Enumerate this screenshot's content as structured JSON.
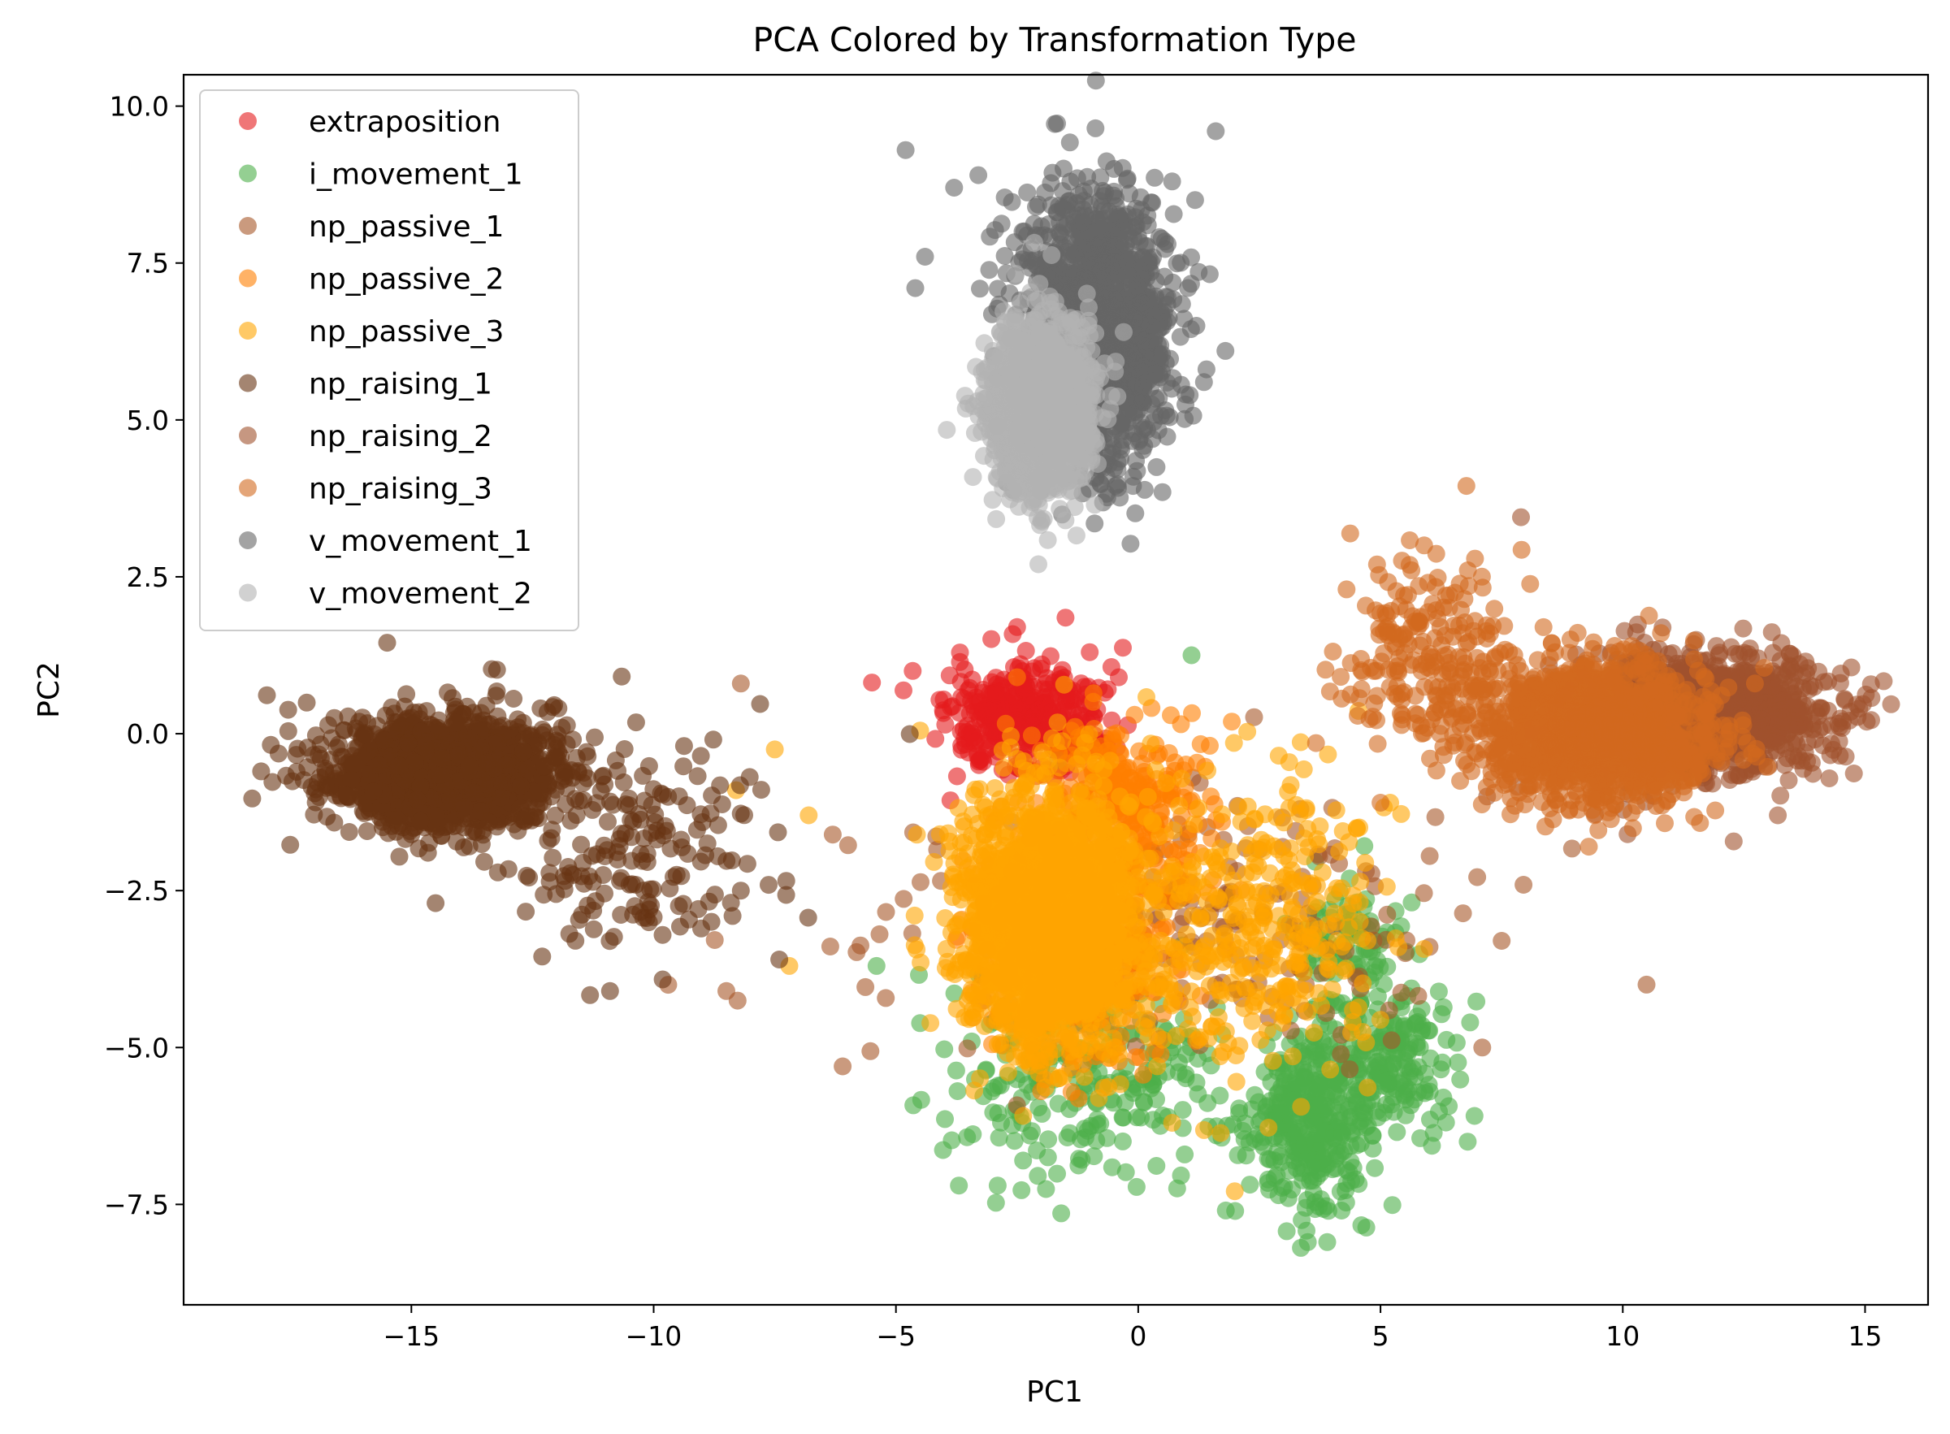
{
  "chart_data": {
    "type": "scatter",
    "title": "PCA Colored by Transformation Type",
    "xlabel": "PC1",
    "ylabel": "PC2",
    "xlim": [
      -19.7,
      16.3
    ],
    "ylim": [
      -9.1,
      10.5
    ],
    "xticks": [
      -15,
      -10,
      -5,
      0,
      5,
      10,
      15
    ],
    "xtick_labels": [
      "−15",
      "−10",
      "−5",
      "0",
      "5",
      "10",
      "15"
    ],
    "yticks": [
      -7.5,
      -5.0,
      -2.5,
      0.0,
      2.5,
      5.0,
      7.5,
      10.0
    ],
    "ytick_labels": [
      "−7.5",
      "−5.0",
      "−2.5",
      "0.0",
      "2.5",
      "5.0",
      "7.5",
      "10.0"
    ],
    "grid": false,
    "legend_position": "top-left",
    "marker_alpha": 0.6,
    "series": [
      {
        "name": "extraposition",
        "color": "#e41a1c",
        "n": 400,
        "clusters": [
          {
            "cx": -2.3,
            "cy": 0.2,
            "sx": 0.8,
            "sy": 0.42,
            "w": 1
          }
        ],
        "outliers": [
          [
            -2.5,
            1.7
          ],
          [
            -1.5,
            1.85
          ],
          [
            -0.4,
            0.9
          ],
          [
            -3.5,
            -0.3
          ],
          [
            -1.0,
            1.3
          ]
        ]
      },
      {
        "name": "i_movement_1",
        "color": "#4daf4a",
        "n": 900,
        "clusters": [
          {
            "cx": 3.5,
            "cy": -6.3,
            "sx": 0.65,
            "sy": 0.65,
            "w": 0.35
          },
          {
            "cx": 5.0,
            "cy": -5.2,
            "sx": 0.8,
            "sy": 0.55,
            "w": 0.25
          },
          {
            "cx": 4.5,
            "cy": -3.2,
            "sx": 0.6,
            "sy": 0.5,
            "w": 0.1
          },
          {
            "cx": -1.2,
            "cy": -5.3,
            "sx": 1.4,
            "sy": 0.9,
            "w": 0.3
          }
        ],
        "outliers": [
          [
            1.1,
            1.25
          ],
          [
            -3.7,
            -7.2
          ],
          [
            -2.9,
            -7.2
          ],
          [
            3.5,
            -8.1
          ],
          [
            3.9,
            -8.1
          ],
          [
            6.8,
            -6.5
          ],
          [
            -5.4,
            -3.7
          ]
        ]
      },
      {
        "name": "np_passive_1",
        "color": "#a65628",
        "n": 260,
        "clusters": [
          {
            "cx": 0.5,
            "cy": -3.0,
            "sx": 3.0,
            "sy": 1.1,
            "w": 1
          }
        ],
        "outliers": [
          [
            -6.1,
            -5.3
          ],
          [
            -8.2,
            0.8
          ],
          [
            7.1,
            -5.0
          ],
          [
            7.5,
            -3.3
          ],
          [
            -9.7,
            -4.0
          ],
          [
            -8.5,
            -4.1
          ]
        ]
      },
      {
        "name": "np_passive_2",
        "color": "#ff7f00",
        "n": 700,
        "clusters": [
          {
            "cx": -0.3,
            "cy": -1.0,
            "sx": 0.9,
            "sy": 0.65,
            "w": 0.4
          },
          {
            "cx": -1.2,
            "cy": -3.4,
            "sx": 1.0,
            "sy": 0.9,
            "w": 0.6
          }
        ],
        "outliers": [
          [
            -2.5,
            0.9
          ],
          [
            1.5,
            -1.0
          ]
        ]
      },
      {
        "name": "np_passive_3",
        "color": "#ffa500",
        "n": 2200,
        "clusters": [
          {
            "cx": -1.8,
            "cy": -3.0,
            "sx": 0.9,
            "sy": 1.0,
            "w": 0.85
          },
          {
            "cx": 2.5,
            "cy": -3.0,
            "sx": 1.3,
            "sy": 1.2,
            "w": 0.15
          }
        ],
        "outliers": [
          [
            -7.5,
            -0.25
          ],
          [
            -6.8,
            -1.3
          ],
          [
            -7.2,
            -3.7
          ],
          [
            -8.3,
            -0.9
          ],
          [
            -4.5,
            0.05
          ],
          [
            2.9,
            -0.35
          ],
          [
            0.7,
            -6.2
          ],
          [
            5.2,
            -1.1
          ]
        ]
      },
      {
        "name": "np_raising_1",
        "color": "#673312",
        "n": 1700,
        "clusters": [
          {
            "cx": -14.3,
            "cy": -0.6,
            "sx": 1.2,
            "sy": 0.45,
            "w": 0.9
          },
          {
            "cx": -10.5,
            "cy": -1.9,
            "sx": 1.5,
            "sy": 0.9,
            "w": 0.1
          }
        ],
        "outliers": [
          [
            -15.5,
            1.45
          ],
          [
            -18.1,
            -0.6
          ],
          [
            -12.3,
            -3.55
          ],
          [
            -10.9,
            -4.1
          ],
          [
            -14.5,
            -2.7
          ],
          [
            -8.2,
            -2.5
          ]
        ]
      },
      {
        "name": "np_raising_2",
        "color": "#a0522d",
        "n": 1300,
        "clusters": [
          {
            "cx": 11.5,
            "cy": 0.3,
            "sx": 1.3,
            "sy": 0.45,
            "w": 1
          }
        ],
        "outliers": [
          [
            7.9,
            3.45
          ],
          [
            14.7,
            0.35
          ],
          [
            13.2,
            -1.3
          ],
          [
            10.1,
            -1.6
          ],
          [
            7.2,
            -1.0
          ]
        ]
      },
      {
        "name": "np_raising_3",
        "color": "#d2691e",
        "n": 1500,
        "clusters": [
          {
            "cx": 9.5,
            "cy": 0.0,
            "sx": 1.2,
            "sy": 0.55,
            "w": 0.85
          },
          {
            "cx": 6.0,
            "cy": 1.3,
            "sx": 0.9,
            "sy": 0.8,
            "w": 0.15
          }
        ],
        "outliers": [
          [
            4.3,
            2.3
          ],
          [
            9.3,
            -1.8
          ],
          [
            5.0,
            -1.1
          ],
          [
            5.9,
            3.0
          ]
        ]
      },
      {
        "name": "v_movement_1",
        "color": "#666666",
        "n": 1600,
        "clusters": [
          {
            "cx": -0.9,
            "cy": 6.4,
            "sx": 0.75,
            "sy": 1.05,
            "w": 1
          }
        ],
        "outliers": [
          [
            -4.8,
            9.3
          ],
          [
            1.6,
            9.6
          ],
          [
            -3.8,
            8.7
          ],
          [
            -3.3,
            8.9
          ],
          [
            -0.5,
            9.0
          ],
          [
            0.7,
            8.8
          ],
          [
            -4.6,
            7.1
          ],
          [
            -4.4,
            7.6
          ],
          [
            1.8,
            6.1
          ],
          [
            1.2,
            6.5
          ],
          [
            0.5,
            3.85
          ],
          [
            -0.9,
            3.35
          ],
          [
            -1.0,
            3.9
          ]
        ]
      },
      {
        "name": "v_movement_2",
        "color": "#b3b3b3",
        "n": 1500,
        "clusters": [
          {
            "cx": -2.0,
            "cy": 5.2,
            "sx": 0.5,
            "sy": 0.65,
            "w": 1
          }
        ],
        "outliers": [
          [
            -3.0,
            6.1
          ],
          [
            -2.0,
            3.4
          ],
          [
            -1.5,
            3.4
          ],
          [
            -2.4,
            4.2
          ],
          [
            -0.3,
            6.4
          ]
        ]
      }
    ]
  }
}
